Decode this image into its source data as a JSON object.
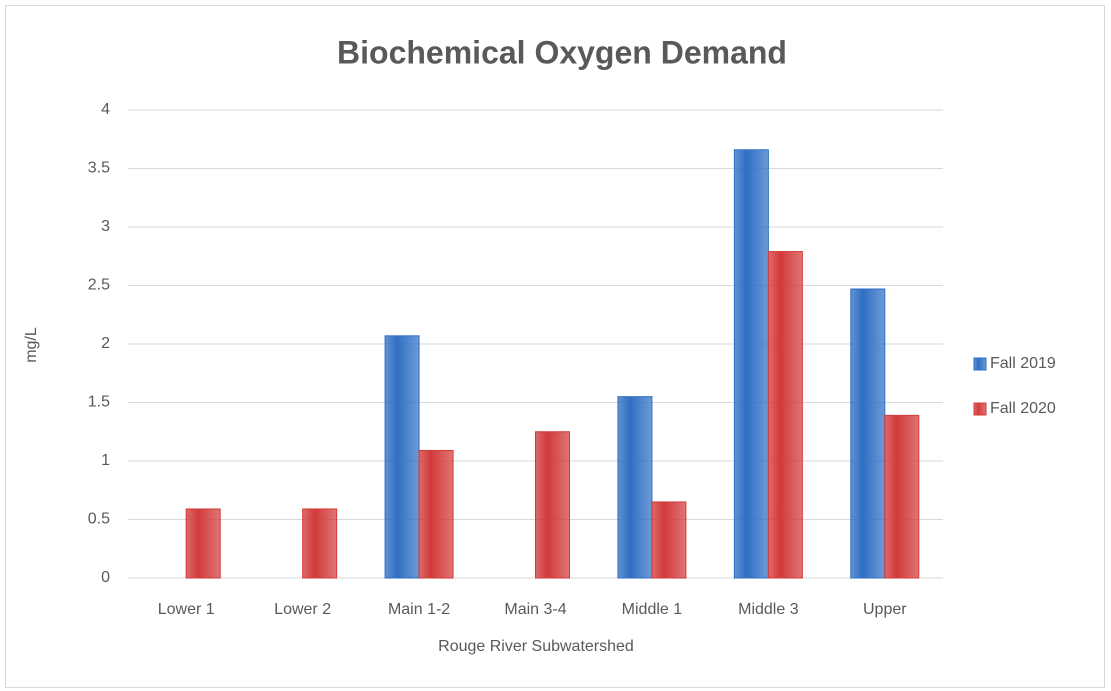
{
  "chart_data": {
    "type": "bar",
    "title": "Biochemical Oxygen Demand",
    "x_label": "Rouge River Subwatershed",
    "y_label": "mg/L",
    "categories": [
      "Lower 1",
      "Lower 2",
      "Main 1-2",
      "Main 3-4",
      "Middle 1",
      "Middle 3",
      "Upper"
    ],
    "series": [
      {
        "name": "Fall 2019",
        "color": "#2f6fc4",
        "values": [
          null,
          null,
          2.07,
          null,
          1.55,
          3.66,
          2.47
        ]
      },
      {
        "name": "Fall 2020",
        "color": "#d23a3a",
        "values": [
          0.59,
          0.59,
          1.09,
          1.25,
          0.65,
          2.79,
          1.39
        ]
      }
    ],
    "ylim": [
      0,
      4
    ],
    "yticks": [
      0,
      0.5,
      1,
      1.5,
      2,
      2.5,
      3,
      3.5,
      4
    ],
    "grid": true,
    "legend": "right"
  }
}
